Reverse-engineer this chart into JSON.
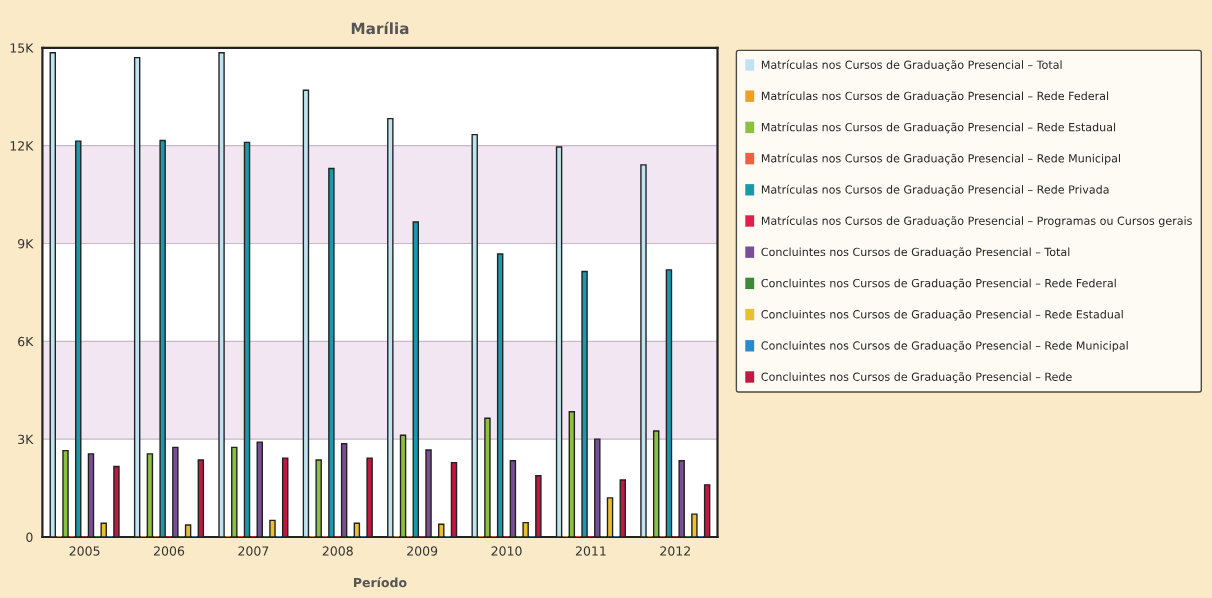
{
  "chart_data": {
    "type": "bar",
    "title": "Marília",
    "xlabel": "Período",
    "categories": [
      "2005",
      "2006",
      "2007",
      "2008",
      "2009",
      "2010",
      "2011",
      "2012"
    ],
    "series": [
      {
        "name": "Matrículas nos Cursos de Graduação Presencial – Total",
        "color": "#bfe3f0",
        "values": [
          14850,
          14700,
          14850,
          13700,
          12830,
          12340,
          11960,
          11410
        ]
      },
      {
        "name": "Matrículas nos Cursos de Graduação Presencial – Rede Federal",
        "color": "#f0a020",
        "values": [
          0,
          0,
          0,
          0,
          0,
          0,
          0,
          0
        ]
      },
      {
        "name": "Matrículas nos Cursos de Graduação Presencial – Rede Estadual",
        "color": "#8cc040",
        "values": [
          2650,
          2550,
          2750,
          2360,
          3120,
          3640,
          3840,
          3250
        ]
      },
      {
        "name": "Matrículas nos Cursos de Graduação Presencial – Rede Municipal",
        "color": "#f06040",
        "values": [
          0,
          0,
          0,
          0,
          0,
          0,
          0,
          0
        ]
      },
      {
        "name": "Matrículas nos Cursos de Graduação Presencial – Rede Privada",
        "color": "#1a9aa8",
        "values": [
          12140,
          12160,
          12100,
          11300,
          9660,
          8680,
          8140,
          8190
        ]
      },
      {
        "name": "Matrículas nos Cursos de Graduação Presencial – Programas ou Cursos gerais",
        "color": "#e0204a",
        "values": [
          0,
          0,
          0,
          0,
          0,
          0,
          0,
          0
        ]
      },
      {
        "name": "Concluintes nos Cursos de Graduação Presencial – Total",
        "color": "#7a4e96",
        "values": [
          2550,
          2750,
          2910,
          2860,
          2670,
          2340,
          3000,
          2340
        ]
      },
      {
        "name": "Concluintes nos Cursos de Graduação Presencial – Rede Federal",
        "color": "#3a8a3a",
        "values": [
          0,
          0,
          0,
          0,
          0,
          0,
          0,
          0
        ]
      },
      {
        "name": "Concluintes nos Cursos de Graduação Presencial – Rede Estadual",
        "color": "#e8c030",
        "values": [
          420,
          370,
          510,
          420,
          390,
          440,
          1200,
          700
        ]
      },
      {
        "name": "Concluintes nos Cursos de Graduação Presencial – Rede Municipal",
        "color": "#2a8ad0",
        "values": [
          0,
          0,
          0,
          0,
          0,
          0,
          0,
          0
        ]
      },
      {
        "name": "Concluintes nos Cursos de Graduação Presencial – Rede",
        "color": "#c01840",
        "values": [
          2160,
          2360,
          2420,
          2420,
          2280,
          1880,
          1750,
          1600
        ]
      }
    ],
    "ylim": [
      0,
      15000
    ],
    "yticks": [
      {
        "value": 0,
        "label": "0"
      },
      {
        "value": 3000,
        "label": "3K"
      },
      {
        "value": 6000,
        "label": "6K"
      },
      {
        "value": 9000,
        "label": "9K"
      },
      {
        "value": 12000,
        "label": "12K"
      },
      {
        "value": 15000,
        "label": "15K"
      }
    ],
    "bands": [
      {
        "axis": "y",
        "from": 3000,
        "to": 6000,
        "color": "#f3e6f3"
      },
      {
        "axis": "y",
        "from": 9000,
        "to": 12000,
        "color": "#f3e6f3"
      }
    ],
    "grid": "y",
    "legend": "right"
  }
}
